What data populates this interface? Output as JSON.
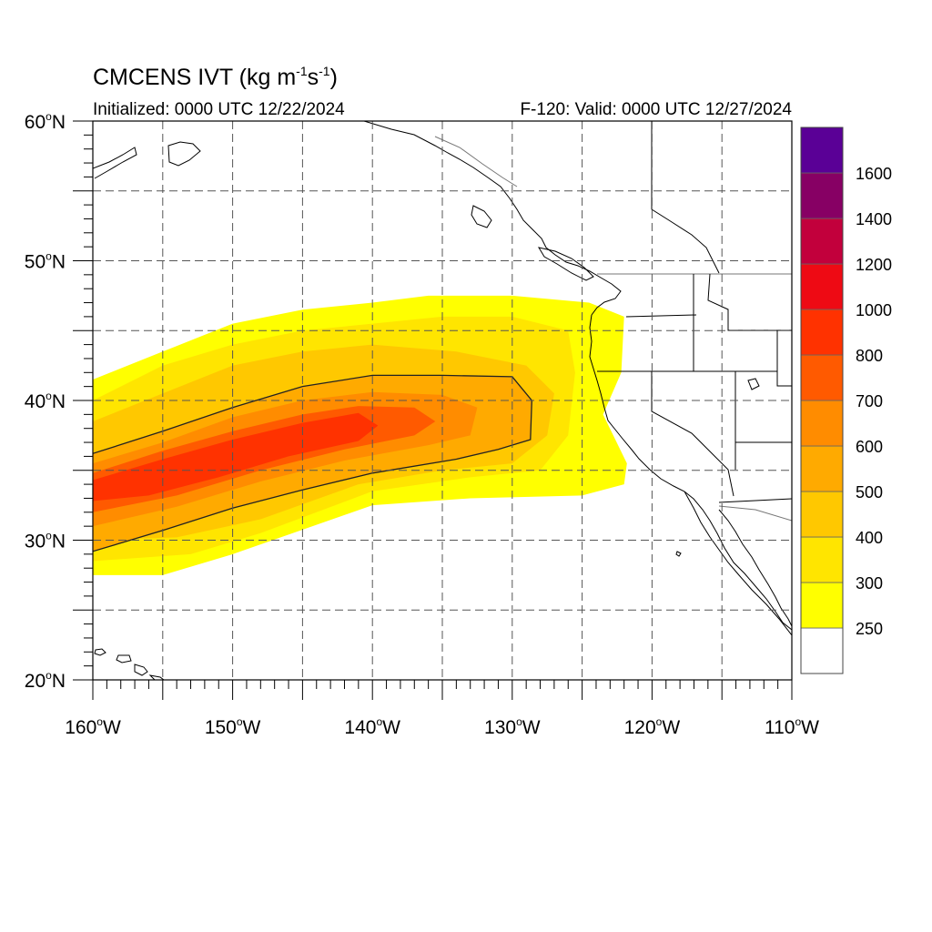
{
  "title": {
    "main": "CMCENS IVT (kg m",
    "exp1": "-1",
    "mid": "s",
    "exp2": "-1",
    "end": ")"
  },
  "initialized": "Initialized: 0000 UTC 12/22/2024",
  "valid": "F-120: Valid: 0000 UTC 12/27/2024",
  "lat_labels": [
    {
      "deg": "60",
      "hemi": "N",
      "value": 60
    },
    {
      "deg": "50",
      "hemi": "N",
      "value": 50
    },
    {
      "deg": "40",
      "hemi": "N",
      "value": 40
    },
    {
      "deg": "30",
      "hemi": "N",
      "value": 30
    },
    {
      "deg": "20",
      "hemi": "N",
      "value": 20
    }
  ],
  "lon_labels": [
    {
      "deg": "160",
      "hemi": "W",
      "value": -160
    },
    {
      "deg": "150",
      "hemi": "W",
      "value": -150
    },
    {
      "deg": "140",
      "hemi": "W",
      "value": -140
    },
    {
      "deg": "130",
      "hemi": "W",
      "value": -130
    },
    {
      "deg": "120",
      "hemi": "W",
      "value": -120
    },
    {
      "deg": "110",
      "hemi": "W",
      "value": -110
    }
  ],
  "colorbar": {
    "levels": [
      {
        "color": "#ffffff",
        "label": "250"
      },
      {
        "color": "#ffff00",
        "label": "300"
      },
      {
        "color": "#ffe500",
        "label": "400"
      },
      {
        "color": "#ffc800",
        "label": "500"
      },
      {
        "color": "#ffaa00",
        "label": "600"
      },
      {
        "color": "#ff8c00",
        "label": "700"
      },
      {
        "color": "#ff5a00",
        "label": "800"
      },
      {
        "color": "#ff3200",
        "label": "1000"
      },
      {
        "color": "#ee0a14",
        "label": "1200"
      },
      {
        "color": "#c2003c",
        "label": "1400"
      },
      {
        "color": "#870064",
        "label": "1600"
      },
      {
        "color": "#5a0096",
        "label": ""
      }
    ]
  },
  "chart_data": {
    "type": "heatmap",
    "title": "CMCENS IVT (kg m-1s-1)",
    "xlim": [
      -160,
      -110
    ],
    "ylim": [
      20,
      60
    ],
    "x_ticks": [
      -160,
      -150,
      -140,
      -130,
      -120,
      -110
    ],
    "y_ticks": [
      20,
      30,
      40,
      50,
      60
    ],
    "grid": true,
    "contour_levels": [
      250,
      300,
      400,
      500,
      600,
      700,
      800,
      1000,
      1200,
      1400,
      1600
    ],
    "colors": [
      "#ffff00",
      "#ffe500",
      "#ffc800",
      "#ffaa00",
      "#ff8c00",
      "#ff5a00",
      "#ff3200",
      "#ee0a14",
      "#c2003c",
      "#870064",
      "#5a0096"
    ],
    "regions": [
      {
        "min_ivt": 250,
        "outline": [
          [
            -160,
            41.5
          ],
          [
            -155,
            43.5
          ],
          [
            -150,
            45.5
          ],
          [
            -145,
            46.5
          ],
          [
            -140,
            47
          ],
          [
            -136,
            47.5
          ],
          [
            -130,
            47.5
          ],
          [
            -124.5,
            47
          ],
          [
            -122,
            46
          ],
          [
            -122.2,
            42
          ],
          [
            -123.5,
            39
          ],
          [
            -121.8,
            35.5
          ],
          [
            -122,
            34
          ],
          [
            -125,
            33.2
          ],
          [
            -133,
            33
          ],
          [
            -140,
            32.5
          ],
          [
            -150,
            29
          ],
          [
            -155,
            27.5
          ],
          [
            -160,
            27.5
          ]
        ]
      },
      {
        "min_ivt": 300,
        "outline": [
          [
            -160,
            40
          ],
          [
            -155,
            42.5
          ],
          [
            -150,
            44
          ],
          [
            -145,
            45
          ],
          [
            -140,
            45.5
          ],
          [
            -135,
            46
          ],
          [
            -130,
            46
          ],
          [
            -126,
            45
          ],
          [
            -125.5,
            42
          ],
          [
            -126,
            37.5
          ],
          [
            -128,
            35
          ],
          [
            -133,
            34.5
          ],
          [
            -140,
            33.5
          ],
          [
            -148,
            30.5
          ],
          [
            -153,
            29
          ],
          [
            -160,
            28.5
          ]
        ]
      },
      {
        "min_ivt": 400,
        "outline": [
          [
            -160,
            38.5
          ],
          [
            -155,
            40.5
          ],
          [
            -150,
            42.5
          ],
          [
            -145,
            43.5
          ],
          [
            -140,
            44
          ],
          [
            -134,
            43.5
          ],
          [
            -129,
            42.5
          ],
          [
            -127,
            40.5
          ],
          [
            -127.5,
            37.5
          ],
          [
            -130,
            35.5
          ],
          [
            -135,
            35
          ],
          [
            -141,
            34
          ],
          [
            -148,
            31.5
          ],
          [
            -154,
            30.2
          ],
          [
            -160,
            30
          ]
        ]
      },
      {
        "min_ivt": 500,
        "outline": [
          [
            -160,
            36.2
          ],
          [
            -155,
            37.8
          ],
          [
            -150,
            39.5
          ],
          [
            -145,
            41
          ],
          [
            -140,
            41.8
          ],
          [
            -135,
            41.8
          ],
          [
            -130,
            41.7
          ],
          [
            -128.6,
            40
          ],
          [
            -128.7,
            37.2
          ],
          [
            -131,
            36.5
          ],
          [
            -134,
            35.8
          ],
          [
            -140,
            34.8
          ],
          [
            -145,
            33.6
          ],
          [
            -150,
            32.3
          ],
          [
            -155,
            30.7
          ],
          [
            -160,
            29.2
          ]
        ]
      },
      {
        "min_ivt": 600,
        "outline": [
          [
            -160,
            35.5
          ],
          [
            -155,
            37
          ],
          [
            -150,
            38.8
          ],
          [
            -145,
            40
          ],
          [
            -140,
            40.6
          ],
          [
            -135,
            40.4
          ],
          [
            -132.5,
            39.5
          ],
          [
            -133,
            37.5
          ],
          [
            -136,
            36.8
          ],
          [
            -142,
            35.7
          ],
          [
            -148,
            34.2
          ],
          [
            -154,
            32.4
          ],
          [
            -160,
            31
          ]
        ]
      },
      {
        "min_ivt": 700,
        "outline": [
          [
            -160,
            34.8
          ],
          [
            -155,
            36.4
          ],
          [
            -150,
            37.8
          ],
          [
            -145,
            39
          ],
          [
            -141,
            39.6
          ],
          [
            -137,
            39.5
          ],
          [
            -135.5,
            38.5
          ],
          [
            -137,
            37.5
          ],
          [
            -142,
            36.5
          ],
          [
            -148,
            35
          ],
          [
            -154,
            33.2
          ],
          [
            -160,
            32
          ]
        ]
      },
      {
        "min_ivt": 800,
        "outline": [
          [
            -160,
            34.3
          ],
          [
            -155,
            35.8
          ],
          [
            -150,
            37.2
          ],
          [
            -145,
            38.4
          ],
          [
            -141,
            39.1
          ],
          [
            -139.6,
            38.2
          ],
          [
            -141,
            37.1
          ],
          [
            -146,
            36
          ],
          [
            -151,
            34.5
          ],
          [
            -156,
            33.2
          ],
          [
            -160,
            32.8
          ]
        ]
      }
    ],
    "contour_line_level": 500
  }
}
